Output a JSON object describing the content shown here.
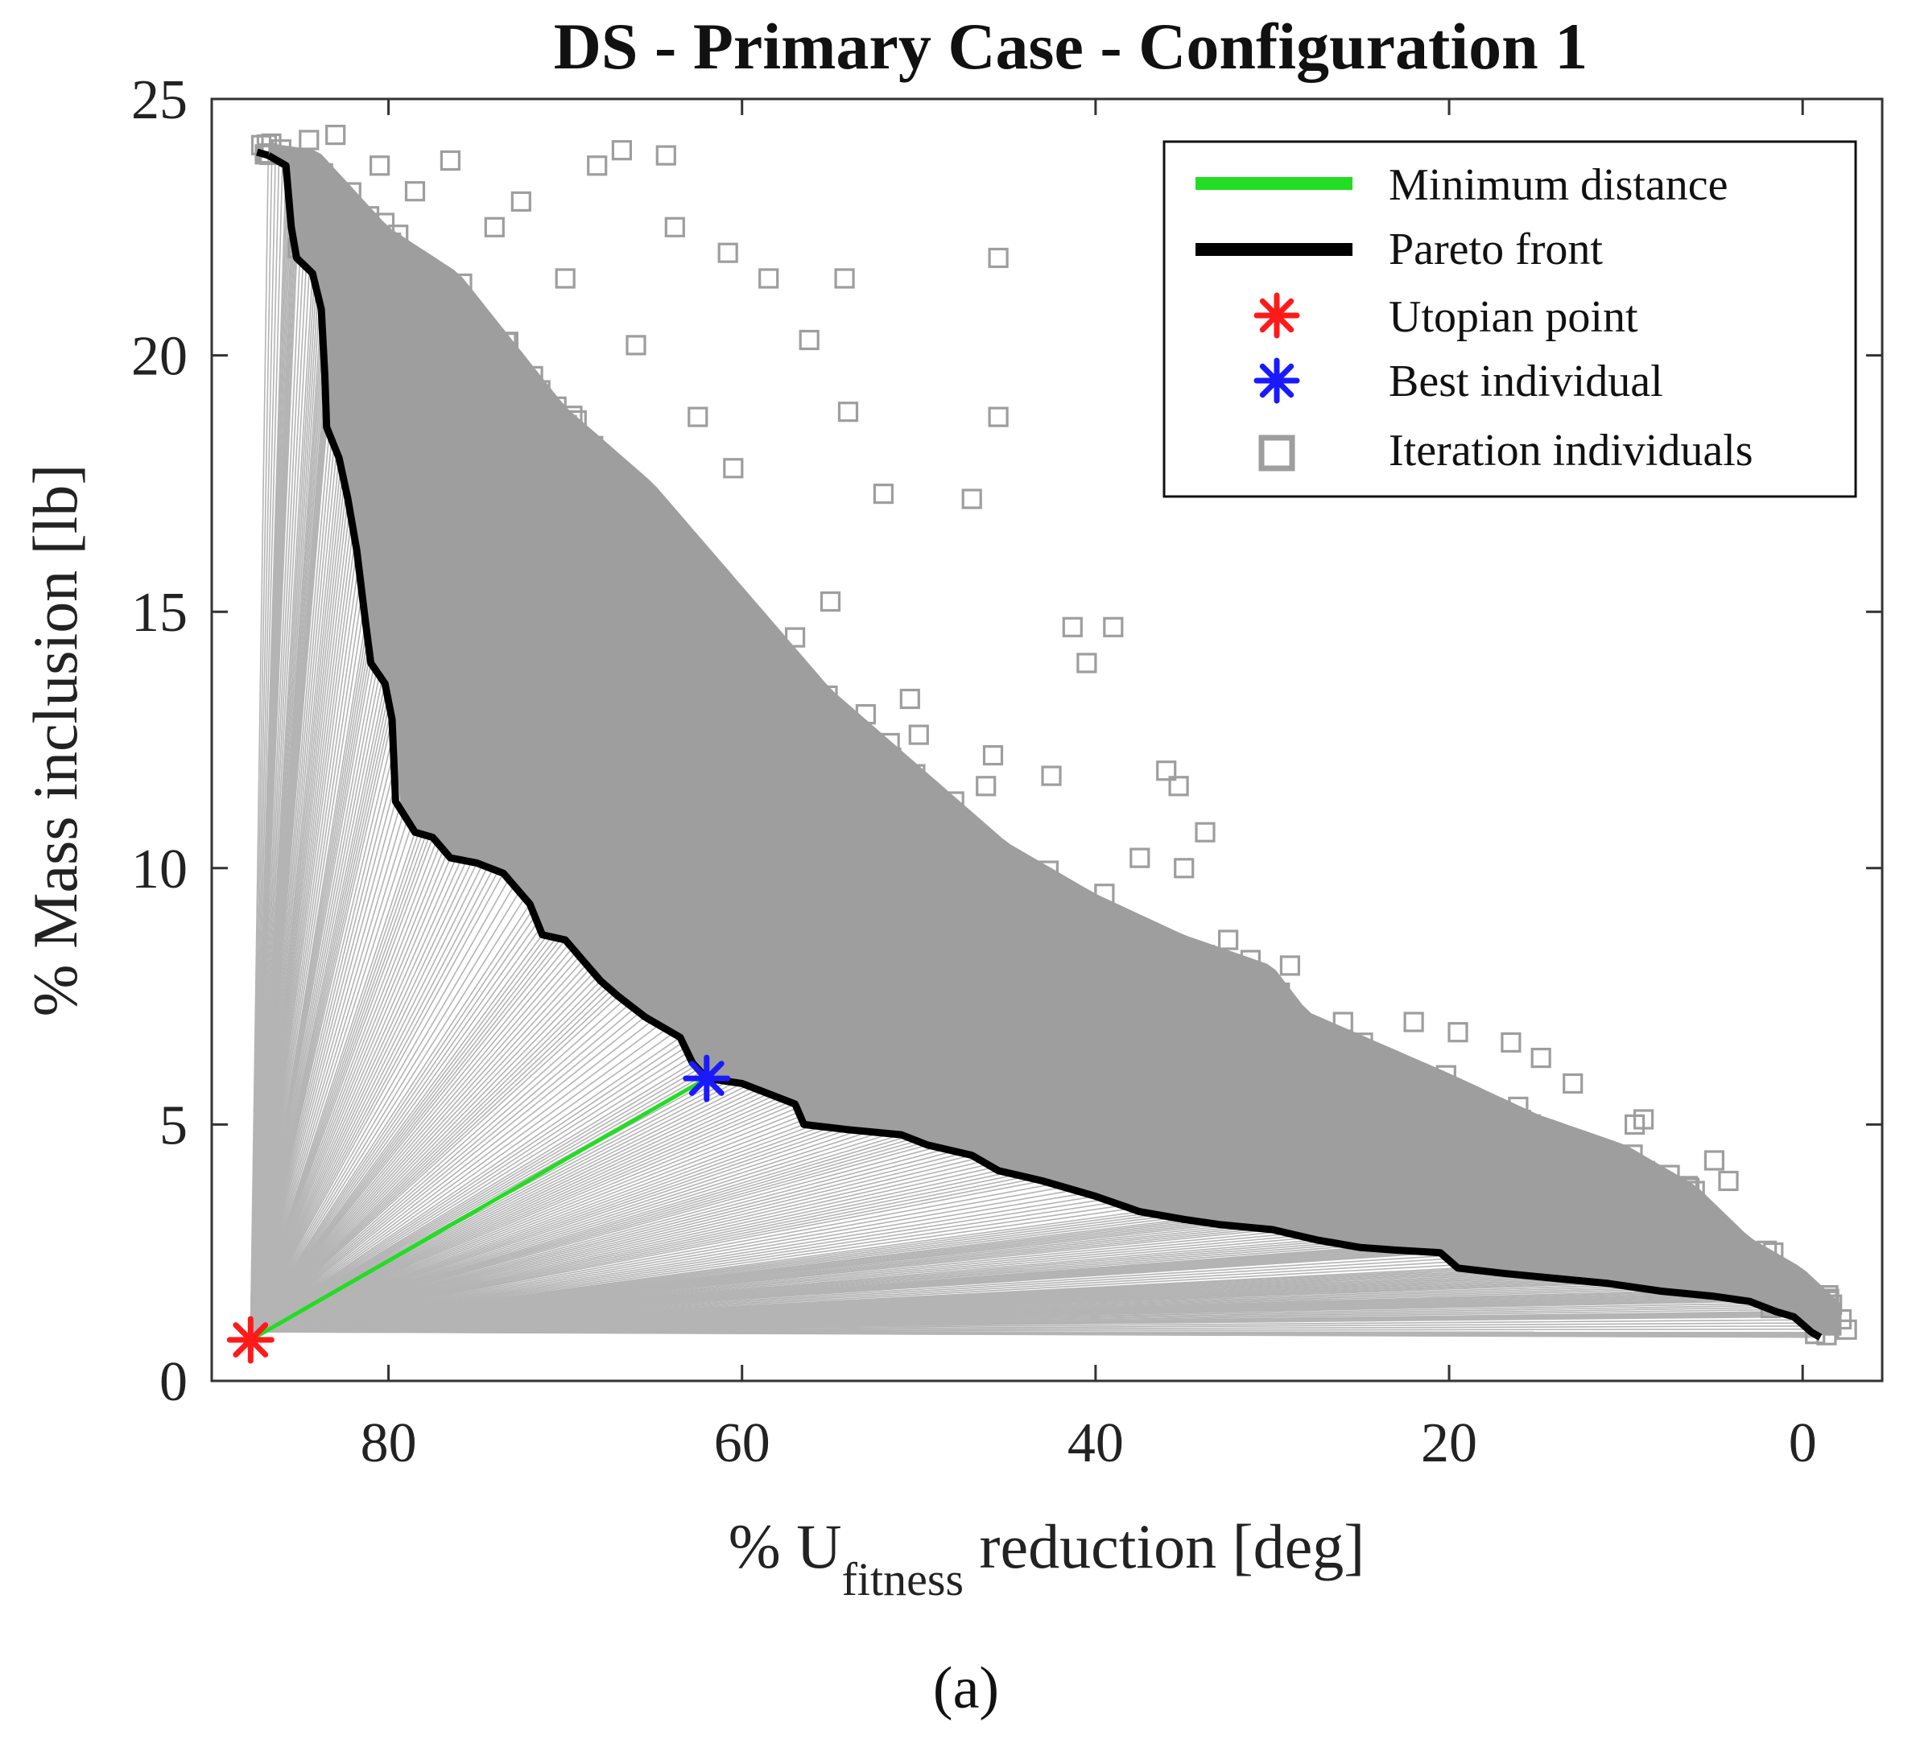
{
  "chart_data": {
    "type": "scatter",
    "title": "DS - Primary Case - Configuration 1",
    "xlabel_prefix": "% U",
    "xlabel_subscript": "fitness",
    "xlabel_suffix": " reduction [deg]",
    "ylabel": "% Mass inclusion [lb]",
    "caption": "(a)",
    "xlim": [
      -4.5,
      90
    ],
    "x_reversed": true,
    "ylim": [
      0,
      25
    ],
    "xticks": [
      80,
      60,
      40,
      20,
      0
    ],
    "xtick_labels": [
      "80",
      "60",
      "40",
      "20",
      "0"
    ],
    "yticks": [
      0,
      5,
      10,
      15,
      20,
      25
    ],
    "ytick_labels": [
      "0",
      "5",
      "10",
      "15",
      "20",
      "25"
    ],
    "legend_position": "top-right",
    "legend": [
      {
        "label": "Minimum distance",
        "kind": "line",
        "color": "#22dd22"
      },
      {
        "label": "Pareto front",
        "kind": "line",
        "color": "#000000"
      },
      {
        "label": "Utopian point",
        "kind": "star",
        "color": "#ff1a1a"
      },
      {
        "label": "Best individual",
        "kind": "star",
        "color": "#1a1aff"
      },
      {
        "label": "Iteration individuals",
        "kind": "square",
        "color": "#9e9e9e"
      }
    ],
    "colors": {
      "individuals": "#9e9e9e",
      "pareto": "#000000",
      "min_distance": "#22dd22",
      "utopian": "#ff1a1a",
      "best": "#1a1aff",
      "spokes": "#b4b4b4"
    },
    "utopian_point": [
      87.8,
      0.8
    ],
    "best_individual": [
      62.0,
      5.9
    ],
    "pareto_front": [
      [
        86.8,
        23.9
      ],
      [
        85.8,
        23.7
      ],
      [
        85.5,
        22.5
      ],
      [
        85.2,
        21.9
      ],
      [
        84.3,
        21.6
      ],
      [
        83.8,
        20.9
      ],
      [
        83.6,
        19.6
      ],
      [
        83.5,
        18.6
      ],
      [
        82.8,
        18.0
      ],
      [
        82.3,
        17.2
      ],
      [
        81.8,
        16.2
      ],
      [
        81.3,
        14.8
      ],
      [
        81.0,
        14.0
      ],
      [
        80.2,
        13.6
      ],
      [
        79.8,
        12.9
      ],
      [
        79.6,
        11.3
      ],
      [
        78.5,
        10.7
      ],
      [
        77.5,
        10.6
      ],
      [
        76.5,
        10.2
      ],
      [
        75.0,
        10.1
      ],
      [
        73.5,
        9.9
      ],
      [
        72.0,
        9.3
      ],
      [
        71.3,
        8.7
      ],
      [
        70.0,
        8.6
      ],
      [
        69.0,
        8.2
      ],
      [
        68.0,
        7.8
      ],
      [
        67.0,
        7.5
      ],
      [
        65.5,
        7.1
      ],
      [
        63.5,
        6.7
      ],
      [
        62.8,
        6.2
      ],
      [
        62.0,
        5.9
      ],
      [
        60.0,
        5.8
      ],
      [
        58.5,
        5.6
      ],
      [
        57.0,
        5.4
      ],
      [
        56.5,
        5.0
      ],
      [
        54.0,
        4.9
      ],
      [
        51.0,
        4.8
      ],
      [
        49.5,
        4.6
      ],
      [
        47.0,
        4.4
      ],
      [
        45.5,
        4.1
      ],
      [
        43.0,
        3.9
      ],
      [
        40.0,
        3.6
      ],
      [
        37.5,
        3.3
      ],
      [
        35.0,
        3.15
      ],
      [
        33.0,
        3.05
      ],
      [
        30.0,
        2.95
      ],
      [
        27.5,
        2.75
      ],
      [
        25.0,
        2.6
      ],
      [
        23.0,
        2.55
      ],
      [
        20.5,
        2.5
      ],
      [
        19.5,
        2.2
      ],
      [
        17.0,
        2.1
      ],
      [
        14.0,
        2.0
      ],
      [
        11.0,
        1.9
      ],
      [
        8.0,
        1.75
      ],
      [
        5.0,
        1.65
      ],
      [
        3.0,
        1.55
      ],
      [
        1.5,
        1.35
      ],
      [
        0.5,
        1.25
      ],
      [
        -0.5,
        0.95
      ],
      [
        -1.0,
        0.85
      ]
    ],
    "sample_individuals": [
      [
        64.3,
        23.9
      ],
      [
        66.8,
        24.0
      ],
      [
        68.2,
        23.7
      ],
      [
        60.8,
        22.0
      ],
      [
        58.5,
        21.5
      ],
      [
        54.2,
        21.5
      ],
      [
        63.8,
        22.5
      ],
      [
        45.5,
        21.9
      ],
      [
        56.2,
        20.3
      ],
      [
        54.0,
        18.9
      ],
      [
        52.0,
        17.3
      ],
      [
        47.0,
        17.2
      ],
      [
        45.5,
        18.8
      ],
      [
        41.3,
        14.7
      ],
      [
        39.0,
        14.7
      ],
      [
        40.5,
        14.0
      ],
      [
        36.0,
        11.9
      ],
      [
        35.3,
        11.6
      ],
      [
        33.8,
        10.7
      ],
      [
        37.5,
        10.2
      ],
      [
        42.5,
        11.8
      ],
      [
        46.2,
        11.6
      ],
      [
        45.8,
        12.2
      ],
      [
        39.5,
        9.5
      ],
      [
        35.0,
        10.0
      ],
      [
        32.5,
        8.6
      ],
      [
        29.0,
        8.1
      ],
      [
        22.0,
        7.0
      ],
      [
        19.5,
        6.8
      ],
      [
        16.5,
        6.6
      ],
      [
        14.8,
        6.3
      ],
      [
        13.0,
        5.8
      ],
      [
        9.5,
        5.0
      ],
      [
        9.0,
        5.1
      ],
      [
        5.0,
        4.3
      ],
      [
        4.2,
        3.9
      ],
      [
        6.5,
        3.8
      ],
      [
        10.5,
        3.7
      ],
      [
        17.8,
        4.8
      ],
      [
        24.0,
        5.5
      ],
      [
        26.0,
        7.0
      ],
      [
        28.5,
        6.5
      ],
      [
        30.5,
        7.5
      ],
      [
        50.5,
        13.3
      ],
      [
        53.0,
        13.0
      ],
      [
        50.0,
        12.6
      ],
      [
        48.0,
        11.3
      ],
      [
        55.0,
        15.2
      ],
      [
        57.0,
        14.5
      ],
      [
        60.5,
        17.8
      ],
      [
        62.5,
        18.8
      ],
      [
        66.0,
        20.2
      ],
      [
        70.0,
        21.5
      ],
      [
        72.5,
        23.0
      ],
      [
        74.0,
        22.5
      ],
      [
        76.5,
        23.8
      ],
      [
        78.5,
        23.2
      ],
      [
        80.5,
        23.7
      ],
      [
        83.0,
        24.3
      ],
      [
        87.2,
        24.1
      ],
      [
        84.5,
        24.2
      ],
      [
        70.5,
        19.0
      ],
      [
        68.5,
        18.0
      ],
      [
        64.0,
        16.0
      ],
      [
        62.0,
        15.3
      ],
      [
        58.0,
        13.5
      ],
      [
        55.5,
        11.5
      ],
      [
        52.5,
        10.3
      ],
      [
        49.0,
        9.2
      ],
      [
        46.0,
        8.6
      ],
      [
        43.0,
        7.5
      ],
      [
        40.0,
        6.8
      ],
      [
        37.0,
        6.0
      ],
      [
        34.0,
        5.5
      ],
      [
        31.0,
        4.8
      ],
      [
        28.0,
        4.3
      ],
      [
        25.0,
        3.8
      ],
      [
        21.0,
        3.5
      ],
      [
        18.0,
        3.2
      ],
      [
        15.0,
        3.0
      ],
      [
        12.0,
        2.7
      ],
      [
        8.5,
        2.5
      ],
      [
        5.5,
        2.3
      ],
      [
        3.0,
        2.1
      ],
      [
        1.0,
        1.9
      ],
      [
        -1.5,
        1.6
      ],
      [
        -2.2,
        1.2
      ],
      [
        -2.5,
        1.0
      ],
      [
        74.5,
        20.5
      ],
      [
        78.0,
        21.0
      ],
      [
        76.0,
        18.5
      ],
      [
        72.0,
        16.5
      ],
      [
        70.0,
        14.5
      ],
      [
        66.5,
        13.0
      ],
      [
        63.0,
        11.5
      ],
      [
        60.0,
        10.0
      ],
      [
        57.5,
        9.0
      ],
      [
        53.5,
        8.0
      ],
      [
        50.0,
        7.0
      ],
      [
        47.5,
        6.2
      ]
    ]
  }
}
